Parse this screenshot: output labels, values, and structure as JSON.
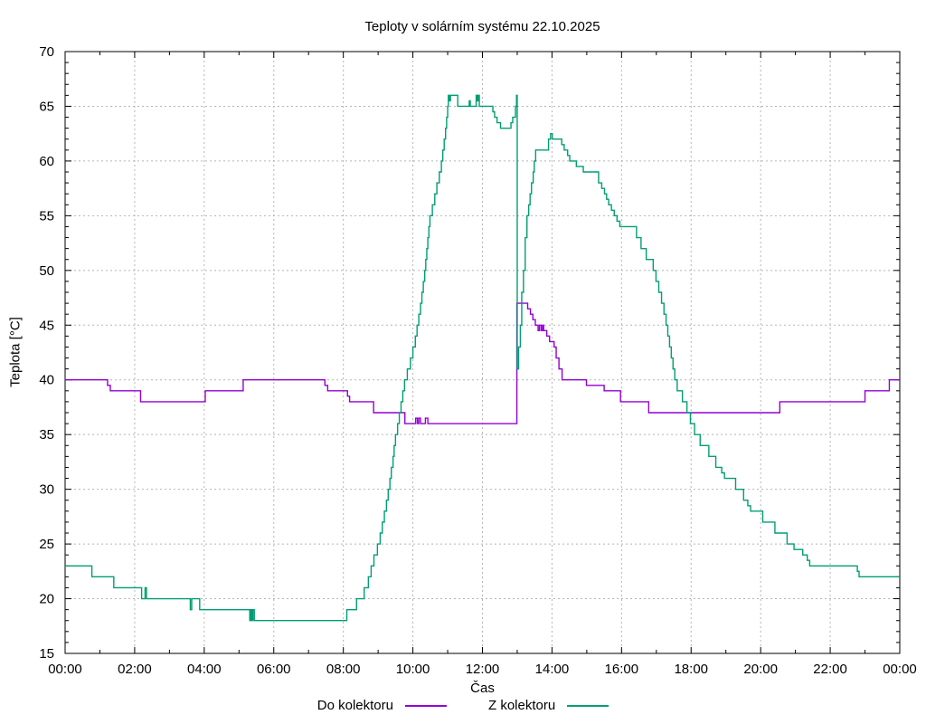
{
  "title": "Teploty v solárním systému 22.10.2025",
  "chart_data": {
    "type": "line",
    "title": "Teploty v solárním systému 22.10.2025",
    "xlabel": "Čas",
    "ylabel": "Teplota [°C]",
    "ylim": [
      15,
      70
    ],
    "xlim_hours": [
      0,
      24
    ],
    "grid": "dashed-major-both-axes",
    "legend_position": "bottom-center",
    "y_ticks": [
      15,
      20,
      25,
      30,
      35,
      40,
      45,
      50,
      55,
      60,
      65,
      70
    ],
    "x_ticks": [
      {
        "hour": 0,
        "label": "00:00"
      },
      {
        "hour": 2,
        "label": "02:00"
      },
      {
        "hour": 4,
        "label": "04:00"
      },
      {
        "hour": 6,
        "label": "06:00"
      },
      {
        "hour": 8,
        "label": "08:00"
      },
      {
        "hour": 10,
        "label": "10:00"
      },
      {
        "hour": 12,
        "label": "12:00"
      },
      {
        "hour": 14,
        "label": "14:00"
      },
      {
        "hour": 16,
        "label": "16:00"
      },
      {
        "hour": 18,
        "label": "18:00"
      },
      {
        "hour": 20,
        "label": "20:00"
      },
      {
        "hour": 22,
        "label": "22:00"
      },
      {
        "hour": 24,
        "label": "00:00"
      }
    ],
    "series": [
      {
        "name": "Do kolektoru",
        "color": "#9400d3",
        "style": "steps",
        "points_hour_degC": [
          [
            0.0,
            40
          ],
          [
            1.22,
            39.5
          ],
          [
            1.3,
            39
          ],
          [
            2.17,
            38
          ],
          [
            4.03,
            39
          ],
          [
            5.12,
            40
          ],
          [
            7.47,
            39.5
          ],
          [
            7.55,
            39
          ],
          [
            8.12,
            38.5
          ],
          [
            8.18,
            38
          ],
          [
            8.87,
            37
          ],
          [
            9.77,
            36
          ],
          [
            10.08,
            36.5
          ],
          [
            10.13,
            36
          ],
          [
            10.17,
            36.5
          ],
          [
            10.22,
            36
          ],
          [
            10.36,
            36.5
          ],
          [
            10.43,
            36
          ],
          [
            12.99,
            47
          ],
          [
            13.3,
            46.5
          ],
          [
            13.38,
            46
          ],
          [
            13.45,
            45.5
          ],
          [
            13.52,
            45
          ],
          [
            13.6,
            44.5
          ],
          [
            13.64,
            45
          ],
          [
            13.69,
            44.5
          ],
          [
            13.73,
            45
          ],
          [
            13.76,
            44.5
          ],
          [
            13.85,
            44
          ],
          [
            13.93,
            43.5
          ],
          [
            14.06,
            43
          ],
          [
            14.12,
            42
          ],
          [
            14.2,
            41
          ],
          [
            14.29,
            40
          ],
          [
            14.99,
            39.5
          ],
          [
            15.5,
            39
          ],
          [
            15.97,
            38
          ],
          [
            16.78,
            37
          ],
          [
            20.55,
            38
          ],
          [
            23.0,
            39
          ],
          [
            23.7,
            40
          ],
          [
            24.0,
            40
          ]
        ]
      },
      {
        "name": "Z kolektoru",
        "color": "#009e73",
        "style": "steps",
        "points_hour_degC": [
          [
            0.0,
            23
          ],
          [
            0.77,
            22
          ],
          [
            1.4,
            21
          ],
          [
            2.2,
            20
          ],
          [
            2.3,
            21
          ],
          [
            2.34,
            20
          ],
          [
            3.6,
            19
          ],
          [
            3.64,
            20
          ],
          [
            3.87,
            19
          ],
          [
            5.31,
            18
          ],
          [
            5.34,
            19
          ],
          [
            5.37,
            18
          ],
          [
            5.4,
            19
          ],
          [
            5.44,
            18
          ],
          [
            8.1,
            19
          ],
          [
            8.38,
            20
          ],
          [
            8.6,
            21
          ],
          [
            8.72,
            22
          ],
          [
            8.8,
            23
          ],
          [
            8.88,
            24
          ],
          [
            8.98,
            25
          ],
          [
            9.06,
            26
          ],
          [
            9.12,
            27
          ],
          [
            9.18,
            28
          ],
          [
            9.24,
            29
          ],
          [
            9.29,
            30
          ],
          [
            9.34,
            31
          ],
          [
            9.38,
            32
          ],
          [
            9.43,
            33
          ],
          [
            9.46,
            34
          ],
          [
            9.5,
            35
          ],
          [
            9.56,
            36
          ],
          [
            9.61,
            37
          ],
          [
            9.66,
            38
          ],
          [
            9.71,
            39
          ],
          [
            9.76,
            40
          ],
          [
            9.84,
            41
          ],
          [
            9.93,
            42
          ],
          [
            10.0,
            43
          ],
          [
            10.07,
            44
          ],
          [
            10.12,
            45
          ],
          [
            10.17,
            46
          ],
          [
            10.22,
            47
          ],
          [
            10.26,
            48
          ],
          [
            10.3,
            49
          ],
          [
            10.34,
            50
          ],
          [
            10.37,
            51
          ],
          [
            10.4,
            52
          ],
          [
            10.43,
            53
          ],
          [
            10.46,
            54
          ],
          [
            10.49,
            55
          ],
          [
            10.56,
            56
          ],
          [
            10.63,
            57
          ],
          [
            10.69,
            58
          ],
          [
            10.76,
            59
          ],
          [
            10.82,
            60
          ],
          [
            10.86,
            61
          ],
          [
            10.9,
            62
          ],
          [
            10.94,
            63
          ],
          [
            10.97,
            64
          ],
          [
            11.0,
            65
          ],
          [
            11.02,
            66
          ],
          [
            11.05,
            65.5
          ],
          [
            11.08,
            66
          ],
          [
            11.29,
            65
          ],
          [
            11.62,
            65.5
          ],
          [
            11.65,
            65
          ],
          [
            11.82,
            66
          ],
          [
            11.85,
            65.5
          ],
          [
            11.88,
            66
          ],
          [
            11.91,
            65
          ],
          [
            12.3,
            64.5
          ],
          [
            12.35,
            64
          ],
          [
            12.42,
            63.5
          ],
          [
            12.52,
            63
          ],
          [
            12.82,
            63.5
          ],
          [
            12.87,
            64
          ],
          [
            12.95,
            65
          ],
          [
            12.98,
            66
          ],
          [
            13.0,
            41
          ],
          [
            13.04,
            43
          ],
          [
            13.09,
            45
          ],
          [
            13.13,
            48
          ],
          [
            13.18,
            50
          ],
          [
            13.23,
            53
          ],
          [
            13.28,
            55
          ],
          [
            13.33,
            56
          ],
          [
            13.37,
            57
          ],
          [
            13.41,
            58
          ],
          [
            13.46,
            59
          ],
          [
            13.49,
            60
          ],
          [
            13.53,
            61
          ],
          [
            13.9,
            62
          ],
          [
            13.96,
            62.5
          ],
          [
            14.01,
            62
          ],
          [
            14.28,
            61.5
          ],
          [
            14.35,
            61
          ],
          [
            14.45,
            60.5
          ],
          [
            14.51,
            60
          ],
          [
            14.7,
            59.5
          ],
          [
            14.9,
            59
          ],
          [
            15.34,
            58
          ],
          [
            15.43,
            57.5
          ],
          [
            15.51,
            57
          ],
          [
            15.57,
            56.5
          ],
          [
            15.63,
            56
          ],
          [
            15.71,
            55.5
          ],
          [
            15.79,
            55
          ],
          [
            15.87,
            54.5
          ],
          [
            15.95,
            54
          ],
          [
            16.43,
            53
          ],
          [
            16.56,
            52
          ],
          [
            16.71,
            51
          ],
          [
            16.91,
            50
          ],
          [
            16.99,
            49
          ],
          [
            17.07,
            48
          ],
          [
            17.15,
            47
          ],
          [
            17.22,
            46
          ],
          [
            17.28,
            45
          ],
          [
            17.33,
            44
          ],
          [
            17.38,
            43
          ],
          [
            17.43,
            42
          ],
          [
            17.48,
            41
          ],
          [
            17.53,
            40
          ],
          [
            17.6,
            39
          ],
          [
            17.75,
            38
          ],
          [
            17.88,
            37
          ],
          [
            17.98,
            36
          ],
          [
            18.1,
            35
          ],
          [
            18.26,
            34
          ],
          [
            18.51,
            33
          ],
          [
            18.71,
            32
          ],
          [
            18.88,
            31.5
          ],
          [
            18.96,
            31
          ],
          [
            19.28,
            30
          ],
          [
            19.51,
            29
          ],
          [
            19.63,
            28.5
          ],
          [
            19.71,
            28
          ],
          [
            20.06,
            27
          ],
          [
            20.41,
            26
          ],
          [
            20.76,
            25
          ],
          [
            20.96,
            24.5
          ],
          [
            21.21,
            24
          ],
          [
            21.34,
            23.5
          ],
          [
            21.41,
            23
          ],
          [
            22.78,
            22.5
          ],
          [
            22.83,
            22
          ],
          [
            24.0,
            22
          ]
        ]
      }
    ]
  }
}
